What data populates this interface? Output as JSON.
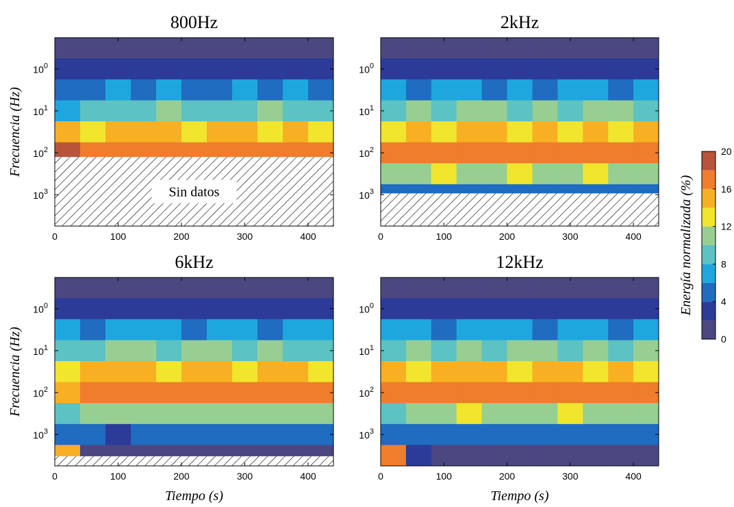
{
  "chart_data": [
    {
      "type": "contour",
      "title": "800Hz",
      "ylabel": "Frecuencia (Hz)",
      "xlim": [
        0,
        440
      ],
      "xticks": [
        0,
        100,
        200,
        300,
        400
      ],
      "ylim": [
        0.18,
        5600
      ],
      "yscale": "log",
      "yreversed": true,
      "yticks": [
        {
          "value": 1,
          "label": "10^0"
        },
        {
          "value": 10,
          "label": "10^1"
        },
        {
          "value": 100,
          "label": "10^2"
        },
        {
          "value": 1000,
          "label": "10^3"
        }
      ],
      "x": [
        20,
        60,
        100,
        140,
        180,
        220,
        260,
        300,
        340,
        380,
        420
      ],
      "y": [
        0.316,
        1,
        3.16,
        10,
        31.6,
        100,
        316,
        1000,
        3160
      ],
      "z": [
        [
          1,
          1,
          1,
          1,
          1,
          1,
          1,
          1,
          1,
          1,
          1
        ],
        [
          2,
          3,
          2,
          3,
          3,
          2,
          3,
          3,
          2,
          3,
          3
        ],
        [
          5,
          5,
          6,
          5,
          6,
          5,
          5,
          6,
          5,
          6,
          5
        ],
        [
          7,
          8,
          9,
          8,
          10,
          9,
          8,
          9,
          10,
          9,
          9
        ],
        [
          14,
          13,
          14,
          15,
          14,
          13,
          14,
          14,
          13,
          14,
          13
        ],
        [
          19,
          16,
          17,
          16,
          17,
          17,
          16,
          17,
          16,
          17,
          16
        ],
        [
          null,
          null,
          null,
          null,
          null,
          null,
          null,
          null,
          null,
          null,
          null
        ],
        [
          null,
          null,
          null,
          null,
          null,
          null,
          null,
          null,
          null,
          null,
          null
        ],
        [
          null,
          null,
          null,
          null,
          null,
          null,
          null,
          null,
          null,
          null,
          null
        ]
      ],
      "nodata_from": 126,
      "annotation": "Sin datos"
    },
    {
      "type": "contour",
      "title": "2kHz",
      "xlim": [
        0,
        440
      ],
      "xticks": [
        0,
        100,
        200,
        300,
        400
      ],
      "ylim": [
        0.18,
        5600
      ],
      "yscale": "log",
      "yreversed": true,
      "yticks": [
        {
          "value": 1,
          "label": "10^0"
        },
        {
          "value": 10,
          "label": "10^1"
        },
        {
          "value": 100,
          "label": "10^2"
        },
        {
          "value": 1000,
          "label": "10^3"
        }
      ],
      "x": [
        20,
        60,
        100,
        140,
        180,
        220,
        260,
        300,
        340,
        380,
        420
      ],
      "y": [
        0.316,
        1,
        3.16,
        10,
        31.6,
        100,
        316,
        1000,
        3160
      ],
      "z": [
        [
          1,
          1,
          1,
          1,
          1,
          1,
          1,
          1,
          1,
          1,
          1
        ],
        [
          2,
          3,
          3,
          2,
          3,
          3,
          3,
          2,
          3,
          3,
          2
        ],
        [
          6,
          5,
          6,
          6,
          5,
          6,
          5,
          6,
          6,
          5,
          6
        ],
        [
          9,
          10,
          9,
          10,
          10,
          9,
          10,
          9,
          10,
          10,
          9
        ],
        [
          13,
          14,
          13,
          14,
          14,
          13,
          14,
          13,
          14,
          13,
          14
        ],
        [
          16,
          17,
          16,
          17,
          17,
          16,
          17,
          16,
          17,
          16,
          16
        ],
        [
          11,
          11,
          12,
          11,
          11,
          12,
          11,
          11,
          12,
          11,
          11
        ],
        [
          5,
          4,
          4,
          4,
          4,
          4,
          4,
          4,
          4,
          4,
          4
        ],
        [
          null,
          null,
          null,
          null,
          null,
          null,
          null,
          null,
          null,
          null,
          null
        ]
      ],
      "nodata_from": 930
    },
    {
      "type": "contour",
      "title": "6kHz",
      "ylabel": "Frecuencia (Hz)",
      "xlabel": "Tiempo (s)",
      "xlim": [
        0,
        440
      ],
      "xticks": [
        0,
        100,
        200,
        300,
        400
      ],
      "ylim": [
        0.18,
        5600
      ],
      "yscale": "log",
      "yreversed": true,
      "yticks": [
        {
          "value": 1,
          "label": "10^0"
        },
        {
          "value": 10,
          "label": "10^1"
        },
        {
          "value": 100,
          "label": "10^2"
        },
        {
          "value": 1000,
          "label": "10^3"
        }
      ],
      "x": [
        20,
        60,
        100,
        140,
        180,
        220,
        260,
        300,
        340,
        380,
        420
      ],
      "y": [
        0.316,
        1,
        3.16,
        10,
        31.6,
        100,
        316,
        1000,
        3160
      ],
      "z": [
        [
          1,
          1,
          1,
          1,
          1,
          1,
          1,
          1,
          1,
          1,
          1
        ],
        [
          3,
          2,
          3,
          3,
          2,
          3,
          3,
          2,
          3,
          3,
          3
        ],
        [
          6,
          5,
          6,
          6,
          6,
          5,
          6,
          6,
          5,
          6,
          6
        ],
        [
          9,
          9,
          10,
          10,
          9,
          10,
          10,
          9,
          10,
          9,
          9
        ],
        [
          13,
          14,
          14,
          14,
          13,
          14,
          14,
          13,
          14,
          14,
          13
        ],
        [
          15,
          17,
          17,
          17,
          17,
          17,
          17,
          16,
          17,
          16,
          17
        ],
        [
          8,
          11,
          11,
          11,
          11,
          11,
          11,
          11,
          11,
          11,
          11
        ],
        [
          4,
          4,
          3,
          4,
          4,
          4,
          4,
          4,
          4,
          4,
          4
        ],
        [
          14,
          1,
          1,
          1,
          1,
          1,
          1,
          1,
          1,
          1,
          1
        ]
      ],
      "nodata_from": 3300
    },
    {
      "type": "contour",
      "title": "12kHz",
      "xlabel": "Tiempo (s)",
      "xlim": [
        0,
        440
      ],
      "xticks": [
        0,
        100,
        200,
        300,
        400
      ],
      "ylim": [
        0.18,
        5600
      ],
      "yscale": "log",
      "yreversed": true,
      "yticks": [
        {
          "value": 1,
          "label": "10^0"
        },
        {
          "value": 10,
          "label": "10^1"
        },
        {
          "value": 100,
          "label": "10^2"
        },
        {
          "value": 1000,
          "label": "10^3"
        }
      ],
      "x": [
        20,
        60,
        100,
        140,
        180,
        220,
        260,
        300,
        340,
        380,
        420
      ],
      "y": [
        0.316,
        1,
        3.16,
        10,
        31.6,
        100,
        316,
        1000,
        3160
      ],
      "z": [
        [
          1,
          1,
          1,
          1,
          1,
          1,
          1,
          1,
          1,
          1,
          1
        ],
        [
          3,
          2,
          3,
          3,
          3,
          2,
          3,
          3,
          2,
          3,
          3
        ],
        [
          6,
          6,
          5,
          6,
          6,
          6,
          5,
          6,
          6,
          5,
          6
        ],
        [
          9,
          10,
          9,
          10,
          9,
          10,
          10,
          9,
          10,
          9,
          10
        ],
        [
          14,
          13,
          14,
          14,
          14,
          13,
          14,
          14,
          13,
          14,
          13
        ],
        [
          16,
          17,
          16,
          17,
          17,
          16,
          17,
          16,
          17,
          17,
          16
        ],
        [
          9,
          11,
          11,
          12,
          11,
          11,
          11,
          12,
          11,
          11,
          11
        ],
        [
          4,
          4,
          4,
          4,
          4,
          4,
          4,
          4,
          4,
          4,
          4
        ],
        [
          16,
          3,
          1,
          1,
          1,
          1,
          1,
          1,
          1,
          1,
          1
        ]
      ]
    },
    {
      "type": "colorbar",
      "label": "Energía normalizada (%)",
      "lim": [
        0,
        20
      ],
      "ticks": [
        0,
        4,
        8,
        12,
        16,
        20
      ],
      "levels": [
        0,
        2,
        4,
        6,
        8,
        10,
        12,
        14,
        16,
        18,
        20
      ],
      "colors": [
        "#4a4781",
        "#2d3b98",
        "#1f6cc0",
        "#1ea7de",
        "#5cc2c2",
        "#97cf92",
        "#f1e52e",
        "#f7b023",
        "#ef7d2b",
        "#b8543a"
      ]
    }
  ]
}
